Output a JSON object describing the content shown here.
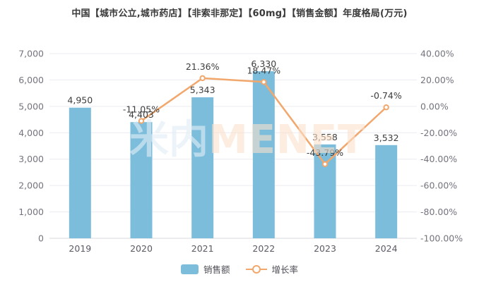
{
  "title": "中国【城市公立,城市药店】【非索非那定】【60mg】【销售金额】年度格局(万元)",
  "watermark": {
    "part1": "米内",
    "part2": "MENET"
  },
  "legend": {
    "bar_label": "销售额",
    "line_label": "增长率"
  },
  "colors": {
    "bar": "#7cbddb",
    "line": "#f2a76c",
    "marker_fill": "#ffffff",
    "grid": "#ececf1",
    "axis_line": "#d9d9df",
    "axis_tick_label": "#74747e",
    "x_tick_label": "#5a5a64",
    "data_label": "#3d3d3d",
    "title_text": "#3a3a3a",
    "background": "#ffffff"
  },
  "chart_data": {
    "type": "bar",
    "title": "中国【城市公立,城市药店】【非索非那定】【60mg】【销售金额】年度格局(万元)",
    "categories": [
      "2019",
      "2020",
      "2021",
      "2022",
      "2023",
      "2024"
    ],
    "series": [
      {
        "name": "销售额",
        "type": "bar",
        "axis": "left",
        "values": [
          4950,
          4403,
          5343,
          6330,
          3558,
          3532
        ],
        "labels": [
          "4,950",
          "4,403",
          "5,343",
          "6,330",
          "3,558",
          "3,532"
        ]
      },
      {
        "name": "增长率",
        "type": "line",
        "axis": "right",
        "values": [
          null,
          -11.05,
          21.36,
          18.47,
          -43.79,
          -0.74
        ],
        "labels": [
          null,
          "-11.05%",
          "21.36%",
          "18.47%",
          "-43.79%",
          "-0.74%"
        ]
      }
    ],
    "left_axis": {
      "min": 0,
      "max": 7000,
      "step": 1000,
      "tick_labels": [
        "7,000",
        "6,000",
        "5,000",
        "4,000",
        "3,000",
        "2,000",
        "1,000",
        "0"
      ]
    },
    "right_axis": {
      "min": -100,
      "max": 40,
      "step": 20,
      "tick_labels": [
        "40.00%",
        "20.00%",
        "0.00%",
        "-20.00%",
        "-40.00%",
        "-60.00%",
        "-80.00%",
        "-100.00%"
      ]
    },
    "grid": true,
    "legend_position": "bottom",
    "xlabel": "",
    "ylabel": ""
  }
}
